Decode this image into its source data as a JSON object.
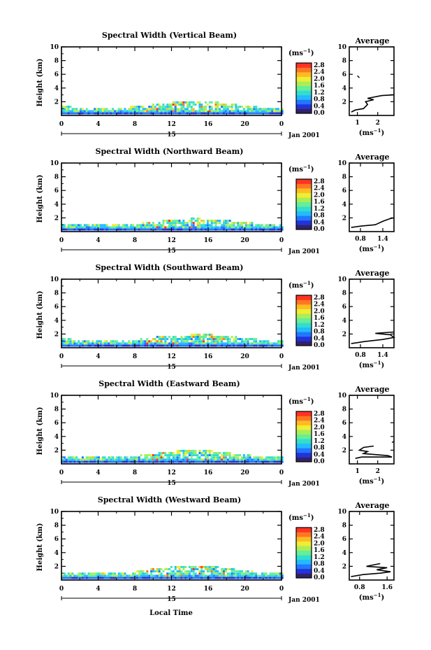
{
  "xlabel_bottom": "Local Time",
  "date_label": "Jan 2001",
  "day_label": "15",
  "colorbar_unit_base": "(ms",
  "colorbar_unit_exp": "−1",
  "colorbar_unit_close": ")",
  "colorbar_ticks": [
    "2.8",
    "2.4",
    "2.0",
    "1.6",
    "1.2",
    "0.8",
    "0.4",
    "0.0"
  ],
  "colorbar_ticks_alt": [
    "2.8",
    "2.4",
    "2.0",
    "1.6",
    "1.2",
    "0.8",
    "0.4",
    "0.0"
  ],
  "avg_title": "Average",
  "avg_unit": "(ms",
  "avg_unit_exp": "−1",
  "avg_unit_close": ")",
  "ylabel": "Height (km)",
  "x_ticks": [
    "0",
    "4",
    "8",
    "12",
    "16",
    "20",
    "0"
  ],
  "y_ticks": [
    "10",
    "8",
    "6",
    "4",
    "2"
  ],
  "colors": {
    "scale": [
      "#332266",
      "#2233dd",
      "#2277ff",
      "#22bbff",
      "#33ddcc",
      "#66ee99",
      "#aaee55",
      "#eeee33",
      "#ffbb22",
      "#ff7722",
      "#ff3322"
    ],
    "axis": "#000000"
  },
  "chart_data": [
    {
      "type": "heatmap",
      "title": "Spectral Width (Vertical Beam)",
      "xlim": [
        0,
        24
      ],
      "ylim": [
        0,
        10
      ],
      "top_profile": [
        [
          0,
          1.2
        ],
        [
          2,
          1.0
        ],
        [
          4,
          1.0
        ],
        [
          6,
          0.9
        ],
        [
          8,
          1.2
        ],
        [
          10,
          1.5
        ],
        [
          12,
          1.8
        ],
        [
          14,
          2.0
        ],
        [
          16,
          1.9
        ],
        [
          18,
          1.6
        ],
        [
          20,
          1.3
        ],
        [
          22,
          1.0
        ],
        [
          24,
          0.9
        ]
      ],
      "average": {
        "x_ticks": [
          "1",
          "2"
        ],
        "xlim": [
          0.6,
          2.8
        ],
        "profile": [
          [
            0.7,
            0.5
          ],
          [
            0.9,
            0.8
          ],
          [
            1.3,
            1.0
          ],
          [
            1.5,
            1.6
          ],
          [
            1.4,
            2.0
          ],
          [
            1.8,
            2.3
          ],
          [
            1.5,
            2.5
          ],
          [
            2.2,
            2.9
          ],
          [
            2.8,
            3.0
          ],
          [
            2.6,
            3.0
          ]
        ],
        "extra": [
          [
            1.0,
            5.8
          ],
          [
            1.1,
            5.5
          ]
        ]
      }
    },
    {
      "type": "heatmap",
      "title": "Spectral Width (Northward Beam)",
      "xlim": [
        0,
        24
      ],
      "ylim": [
        0,
        10
      ],
      "top_profile": [
        [
          0,
          1.1
        ],
        [
          2,
          0.9
        ],
        [
          4,
          0.9
        ],
        [
          6,
          0.8
        ],
        [
          8,
          1.0
        ],
        [
          10,
          1.3
        ],
        [
          12,
          1.6
        ],
        [
          14,
          1.8
        ],
        [
          16,
          1.7
        ],
        [
          18,
          1.5
        ],
        [
          20,
          1.2
        ],
        [
          22,
          1.0
        ],
        [
          24,
          0.9
        ]
      ],
      "average": {
        "x_ticks": [
          "0.8",
          "1.4"
        ],
        "xlim": [
          0.5,
          1.7
        ],
        "profile": [
          [
            0.55,
            0.6
          ],
          [
            0.8,
            0.8
          ],
          [
            1.2,
            1.0
          ],
          [
            1.4,
            1.5
          ],
          [
            1.6,
            1.9
          ],
          [
            1.7,
            2.0
          ]
        ],
        "extra": []
      }
    },
    {
      "type": "heatmap",
      "title": "Spectral Width (Southward Beam)",
      "xlim": [
        0,
        24
      ],
      "ylim": [
        0,
        10
      ],
      "top_profile": [
        [
          0,
          1.2
        ],
        [
          2,
          1.0
        ],
        [
          4,
          0.9
        ],
        [
          6,
          0.8
        ],
        [
          8,
          1.1
        ],
        [
          10,
          1.4
        ],
        [
          12,
          1.6
        ],
        [
          14,
          1.9
        ],
        [
          16,
          1.8
        ],
        [
          18,
          1.6
        ],
        [
          20,
          1.3
        ],
        [
          22,
          1.0
        ],
        [
          24,
          0.9
        ]
      ],
      "average": {
        "x_ticks": [
          "0.8",
          "1.4"
        ],
        "xlim": [
          0.5,
          1.7
        ],
        "profile": [
          [
            0.55,
            0.6
          ],
          [
            0.9,
            0.9
          ],
          [
            1.4,
            1.2
          ],
          [
            1.7,
            1.5
          ],
          [
            1.6,
            1.9
          ],
          [
            1.2,
            2.1
          ],
          [
            1.7,
            2.3
          ]
        ],
        "extra": []
      }
    },
    {
      "type": "heatmap",
      "title": "Spectral Width (Eastward Beam)",
      "xlim": [
        0,
        24
      ],
      "ylim": [
        0,
        10
      ],
      "top_profile": [
        [
          0,
          1.0
        ],
        [
          2,
          0.9
        ],
        [
          4,
          0.8
        ],
        [
          6,
          0.8
        ],
        [
          8,
          1.0
        ],
        [
          10,
          1.4
        ],
        [
          12,
          1.7
        ],
        [
          14,
          1.9
        ],
        [
          16,
          1.8
        ],
        [
          18,
          1.5
        ],
        [
          20,
          1.2
        ],
        [
          22,
          0.9
        ],
        [
          24,
          0.8
        ]
      ],
      "average": {
        "x_ticks": [
          "1",
          "2"
        ],
        "xlim": [
          0.6,
          2.8
        ],
        "profile": [
          [
            0.9,
            0.8
          ],
          [
            1.2,
            1.0
          ],
          [
            2.7,
            1.0
          ],
          [
            2.5,
            1.2
          ],
          [
            1.3,
            1.5
          ],
          [
            1.5,
            1.8
          ],
          [
            1.1,
            2.0
          ],
          [
            1.3,
            2.4
          ],
          [
            1.8,
            2.6
          ]
        ],
        "extra": [
          [
            2.7,
            3.1
          ],
          [
            2.8,
            3.3
          ]
        ]
      }
    },
    {
      "type": "heatmap",
      "title": "Spectral Width (Westward Beam)",
      "xlim": [
        0,
        24
      ],
      "ylim": [
        0,
        10
      ],
      "top_profile": [
        [
          0,
          1.1
        ],
        [
          2,
          0.9
        ],
        [
          4,
          0.9
        ],
        [
          6,
          0.8
        ],
        [
          8,
          1.1
        ],
        [
          10,
          1.5
        ],
        [
          12,
          1.8
        ],
        [
          14,
          2.0
        ],
        [
          16,
          1.9
        ],
        [
          18,
          1.6
        ],
        [
          20,
          1.3
        ],
        [
          22,
          1.0
        ],
        [
          24,
          0.9
        ]
      ],
      "average": {
        "x_ticks": [
          "0.8",
          "1.6"
        ],
        "xlim": [
          0.5,
          1.8
        ],
        "profile": [
          [
            0.55,
            0.5
          ],
          [
            0.9,
            0.8
          ],
          [
            1.4,
            1.0
          ],
          [
            1.7,
            1.2
          ],
          [
            1.3,
            1.5
          ],
          [
            1.6,
            1.8
          ],
          [
            1.0,
            2.0
          ],
          [
            1.2,
            2.2
          ],
          [
            1.4,
            2.4
          ]
        ],
        "extra": []
      }
    }
  ]
}
